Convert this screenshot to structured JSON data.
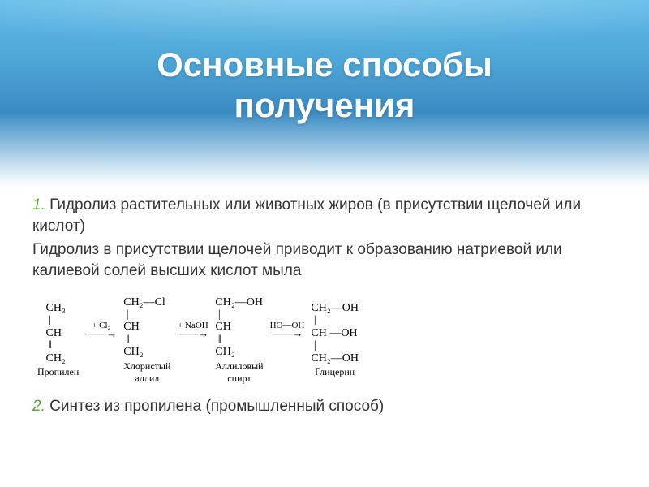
{
  "header": {
    "title_line1": "Основные способы",
    "title_line2": "получения",
    "gradient_top": "#5bb8e8",
    "gradient_mid": "#3a8bc4",
    "gradient_bottom": "#ffffff",
    "title_color": "#ffffff",
    "title_fontsize": 42
  },
  "section1": {
    "number": "1.",
    "paragraph1": "Гидролиз растительных или животных жиров (в присутствии щелочей или кислот)",
    "paragraph2": "Гидролиз в присутствии щелочей приводит к образованию натриевой или калиевой солей высших кислот   мыла",
    "number_color": "#5aa839",
    "text_color": "#333333",
    "fontsize": 19
  },
  "reaction": {
    "type": "chemical-scheme",
    "molecules": [
      {
        "name": "propylene",
        "lines": [
          "   CH₃",
          "    |",
          "   CH",
          "    ‖",
          "   CH₂"
        ],
        "label": "Пропилен"
      },
      {
        "name": "allyl-chloride",
        "lines": [
          "CH₂—Cl",
          " |",
          "CH",
          " ‖",
          "CH₂"
        ],
        "label": "Хлористый\nаллил"
      },
      {
        "name": "allyl-alcohol",
        "lines": [
          "CH₂—OH",
          " |",
          "CH",
          " ‖",
          "CH₂"
        ],
        "label": "Аллиловый\nспирт"
      },
      {
        "name": "glycerol",
        "lines": [
          "CH₂—OH",
          " |",
          "CH —OH",
          " |",
          "CH₂—OH"
        ],
        "label": "Глицерин"
      }
    ],
    "arrows": [
      {
        "reagent": "+ Cl₂",
        "symbol": "——→"
      },
      {
        "reagent": "+ NaOH",
        "symbol": "——→"
      },
      {
        "reagent": "HO—OH",
        "symbol": "——→"
      }
    ],
    "font": "Times New Roman",
    "mol_fontsize": 14,
    "label_fontsize": 12,
    "text_color": "#000000"
  },
  "section2": {
    "number": "2.",
    "text": "Синтез из пропилена (промышленный способ)",
    "number_color": "#5aa839",
    "text_color": "#333333",
    "fontsize": 19
  }
}
